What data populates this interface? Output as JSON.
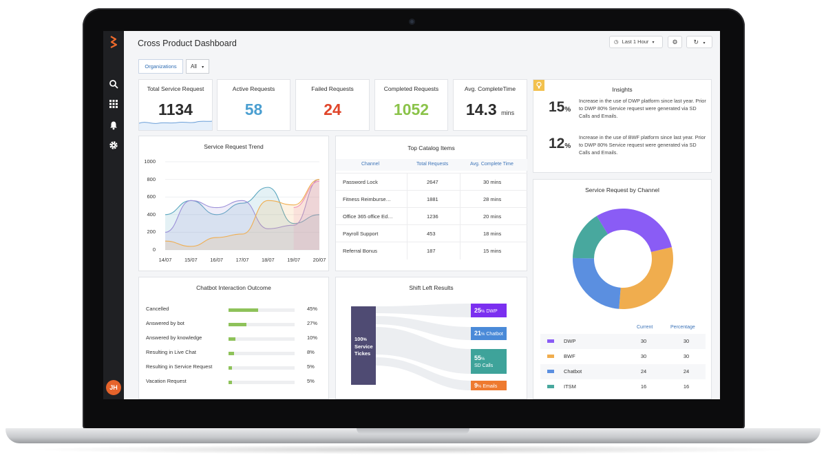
{
  "header": {
    "title": "Cross Product Dashboard",
    "time_range": "Last 1 Hour"
  },
  "user": {
    "initials": "JH"
  },
  "filters": {
    "organizations_label": "Organizations",
    "scope_value": "All"
  },
  "kpis": [
    {
      "title": "Total Service Request",
      "value": "1134",
      "color": "#2b2b2b"
    },
    {
      "title": "Active Requests",
      "value": "58",
      "color": "#4b9fd1"
    },
    {
      "title": "Failed Requests",
      "value": "24",
      "color": "#e0452a"
    },
    {
      "title": "Completed Requests",
      "value": "1052",
      "color": "#8bc34a"
    },
    {
      "title": "Avg. CompleteTime",
      "value": "14.3",
      "unit": "mins",
      "color": "#2b2b2b"
    }
  ],
  "trend": {
    "title": "Service Request Trend",
    "chart_data": {
      "type": "area",
      "categories": [
        "14/07",
        "15/07",
        "16/07",
        "17/07",
        "18/07",
        "19/07",
        "20/07"
      ],
      "ylim": [
        0,
        1000
      ],
      "yticks": [
        "1000",
        "800",
        "600",
        "400",
        "200",
        "0"
      ],
      "series": [
        {
          "color": "#5aa6bf",
          "values": [
            400,
            560,
            400,
            530,
            710,
            300,
            400
          ]
        },
        {
          "color": "#9b8fd8",
          "values": [
            200,
            560,
            480,
            560,
            240,
            280,
            800
          ]
        },
        {
          "color": "#f0ad4e",
          "values": [
            100,
            40,
            140,
            180,
            560,
            510,
            800
          ]
        },
        {
          "color": "#ee8fb6",
          "values": [
            null,
            null,
            null,
            null,
            null,
            480,
            780
          ]
        }
      ]
    }
  },
  "catalog": {
    "title": "Top Catalog Items",
    "columns": [
      "Channel",
      "Total Requests",
      "Avg. Complete Time"
    ],
    "rows": [
      [
        "Password Lock",
        "2647",
        "30 mins"
      ],
      [
        "Fitness Reimburse…",
        "1881",
        "28 mins"
      ],
      [
        "Office 365 office Ed…",
        "1236",
        "20 mins"
      ],
      [
        "Payroll Support",
        "453",
        "18 mins"
      ],
      [
        "Referral Bonus",
        "187",
        "15 mins"
      ]
    ]
  },
  "insights": {
    "title": "Insights",
    "items": [
      {
        "value": "15",
        "unit": "%",
        "text": "Increase in the use of DWP platform since last year. Prior to DWP 80% Service request were generated via SD Calls and Emails."
      },
      {
        "value": "12",
        "unit": "%",
        "text": "Increase in the use of BWF platform since last year. Prior to DWP 80% Service request were generated via SD Calls and Emails."
      }
    ]
  },
  "chatbot": {
    "title": "Chatbot Interaction Outcome",
    "rows": [
      {
        "label": "Cancelled",
        "pct": "45%",
        "fill": 0.45
      },
      {
        "label": "Answered by bot",
        "pct": "27%",
        "fill": 0.27
      },
      {
        "label": "Answered by knowledge",
        "pct": "10%",
        "fill": 0.1
      },
      {
        "label": "Resulting in Live Chat",
        "pct": "8%",
        "fill": 0.08
      },
      {
        "label": "Resulting in Service Request",
        "pct": "5%",
        "fill": 0.05
      },
      {
        "label": "Vacation Request",
        "pct": "5%",
        "fill": 0.05
      }
    ]
  },
  "shift_left": {
    "title": "Shift Left Results",
    "source": {
      "value": "100",
      "unit": "%",
      "line1": "Service",
      "line2": "Tickes"
    },
    "targets": [
      {
        "value": "25",
        "unit": "%",
        "label": "DWP",
        "color": "#7b2ff0"
      },
      {
        "value": "21",
        "unit": "%",
        "label": "Chatbot",
        "color": "#4a8ad8"
      },
      {
        "value": "55",
        "unit": "%",
        "label": "SD Calls",
        "color": "#3ea39a"
      },
      {
        "value": "9",
        "unit": "%",
        "label": "Emails",
        "color": "#ee7a2f"
      }
    ]
  },
  "channel": {
    "title": "Service Request by Channel",
    "columns": [
      "Current",
      "Percentage"
    ],
    "chart_data": {
      "type": "pie",
      "donut": true,
      "categories": [
        "DWP",
        "BWF",
        "Chatbot",
        "ITSM"
      ],
      "values": [
        30,
        30,
        24,
        16
      ],
      "colors": [
        "#8a5cf5",
        "#f0ad4e",
        "#5b8fe0",
        "#48a89e"
      ]
    },
    "rows": [
      {
        "name": "DWP",
        "current": "30",
        "percentage": "30"
      },
      {
        "name": "BWF",
        "current": "30",
        "percentage": "30"
      },
      {
        "name": "Chatbot",
        "current": "24",
        "percentage": "24"
      },
      {
        "name": "ITSM",
        "current": "16",
        "percentage": "16"
      }
    ]
  }
}
